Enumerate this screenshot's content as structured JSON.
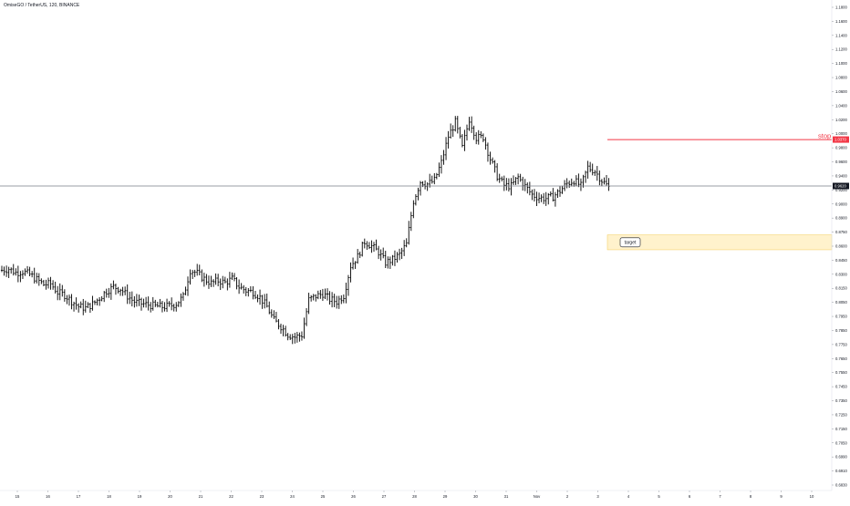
{
  "header": {
    "title": "OmiseGO / TetherUS, 120, BINANCE"
  },
  "colors": {
    "bars": "#000000",
    "last_price_line": "#787b86",
    "stop_line": "#f23645",
    "target_fill": "#fff2cc",
    "target_border": "#f5d26b",
    "axis_text": "#131722",
    "divider": "#e0e3eb"
  },
  "chart_data": {
    "type": "ohlc",
    "y_ticks": [
      "1.1800",
      "1.1600",
      "1.1400",
      "1.1200",
      "1.1000",
      "1.0800",
      "1.0600",
      "1.0400",
      "1.0200",
      "1.0000",
      "0.9800",
      "0.9600",
      "0.9400",
      "0.9200",
      "0.9000",
      "0.8900",
      "0.8750",
      "0.8600",
      "0.8450",
      "0.8300",
      "0.8150",
      "0.8050",
      "0.7950",
      "0.7850",
      "0.7750",
      "0.7650",
      "0.7550",
      "0.7450",
      "0.7350",
      "0.7250",
      "0.7150",
      "0.7050",
      "0.6990",
      "0.6910",
      "0.6830"
    ],
    "x_ticks": [
      "15",
      "16",
      "17",
      "18",
      "19",
      "20",
      "21",
      "22",
      "23",
      "24",
      "25",
      "26",
      "27",
      "28",
      "29",
      "30",
      "31",
      "Nov",
      "2",
      "3",
      "4",
      "5",
      "6",
      "7",
      "8",
      "9",
      "10"
    ],
    "bar_anchors": [
      [
        0,
        0.826
      ],
      [
        3,
        0.828
      ],
      [
        6,
        0.822
      ],
      [
        9,
        0.824
      ],
      [
        12,
        0.819
      ],
      [
        15,
        0.811
      ],
      [
        18,
        0.803
      ],
      [
        21,
        0.804
      ],
      [
        24,
        0.79
      ],
      [
        27,
        0.786
      ],
      [
        30,
        0.776
      ],
      [
        33,
        0.767
      ],
      [
        36,
        0.765
      ],
      [
        39,
        0.771
      ],
      [
        42,
        0.781
      ],
      [
        45,
        0.792
      ],
      [
        48,
        0.799
      ],
      [
        51,
        0.796
      ],
      [
        54,
        0.784
      ],
      [
        57,
        0.775
      ],
      [
        60,
        0.772
      ],
      [
        63,
        0.77
      ],
      [
        66,
        0.768
      ],
      [
        69,
        0.767
      ],
      [
        72,
        0.768
      ],
      [
        75,
        0.772
      ],
      [
        78,
        0.783
      ],
      [
        81,
        0.826
      ],
      [
        84,
        0.821
      ],
      [
        87,
        0.812
      ],
      [
        90,
        0.805
      ],
      [
        93,
        0.809
      ],
      [
        96,
        0.806
      ],
      [
        99,
        0.812
      ],
      [
        102,
        0.799
      ],
      [
        105,
        0.793
      ],
      [
        108,
        0.791
      ],
      [
        111,
        0.782
      ],
      [
        114,
        0.767
      ],
      [
        117,
        0.745
      ],
      [
        120,
        0.735
      ],
      [
        123,
        0.722
      ],
      [
        126,
        0.718
      ],
      [
        129,
        0.721
      ],
      [
        132,
        0.778
      ],
      [
        135,
        0.784
      ],
      [
        138,
        0.788
      ],
      [
        141,
        0.779
      ],
      [
        144,
        0.775
      ],
      [
        147,
        0.785
      ],
      [
        150,
        0.833
      ],
      [
        153,
        0.848
      ],
      [
        156,
        0.872
      ],
      [
        159,
        0.865
      ],
      [
        162,
        0.855
      ],
      [
        165,
        0.838
      ],
      [
        168,
        0.843
      ],
      [
        171,
        0.851
      ],
      [
        174,
        0.868
      ],
      [
        177,
        0.938
      ],
      [
        180,
        0.969
      ],
      [
        183,
        0.965
      ],
      [
        186,
        0.971
      ],
      [
        189,
        1.0
      ],
      [
        192,
        1.042
      ],
      [
        195,
        1.065
      ],
      [
        198,
        1.024
      ],
      [
        201,
        1.07
      ],
      [
        204,
        1.04
      ],
      [
        207,
        1.041
      ],
      [
        210,
        1.006
      ],
      [
        213,
        0.978
      ],
      [
        216,
        0.963
      ],
      [
        219,
        0.962
      ],
      [
        222,
        0.976
      ],
      [
        225,
        0.962
      ],
      [
        228,
        0.948
      ],
      [
        231,
        0.943
      ],
      [
        234,
        0.942
      ],
      [
        237,
        0.945
      ],
      [
        240,
        0.954
      ],
      [
        243,
        0.966
      ],
      [
        246,
        0.971
      ],
      [
        249,
        0.962
      ],
      [
        252,
        0.992
      ],
      [
        255,
        0.986
      ],
      [
        258,
        0.971
      ],
      [
        261,
        0.96
      ]
    ],
    "last_price": 0.962,
    "last_price_label": "0.9620",
    "stop": {
      "label": "stop",
      "price": 1.037,
      "price_label": "1.0370"
    },
    "target": {
      "label": "target",
      "top": 0.883,
      "bottom": 0.859
    }
  }
}
